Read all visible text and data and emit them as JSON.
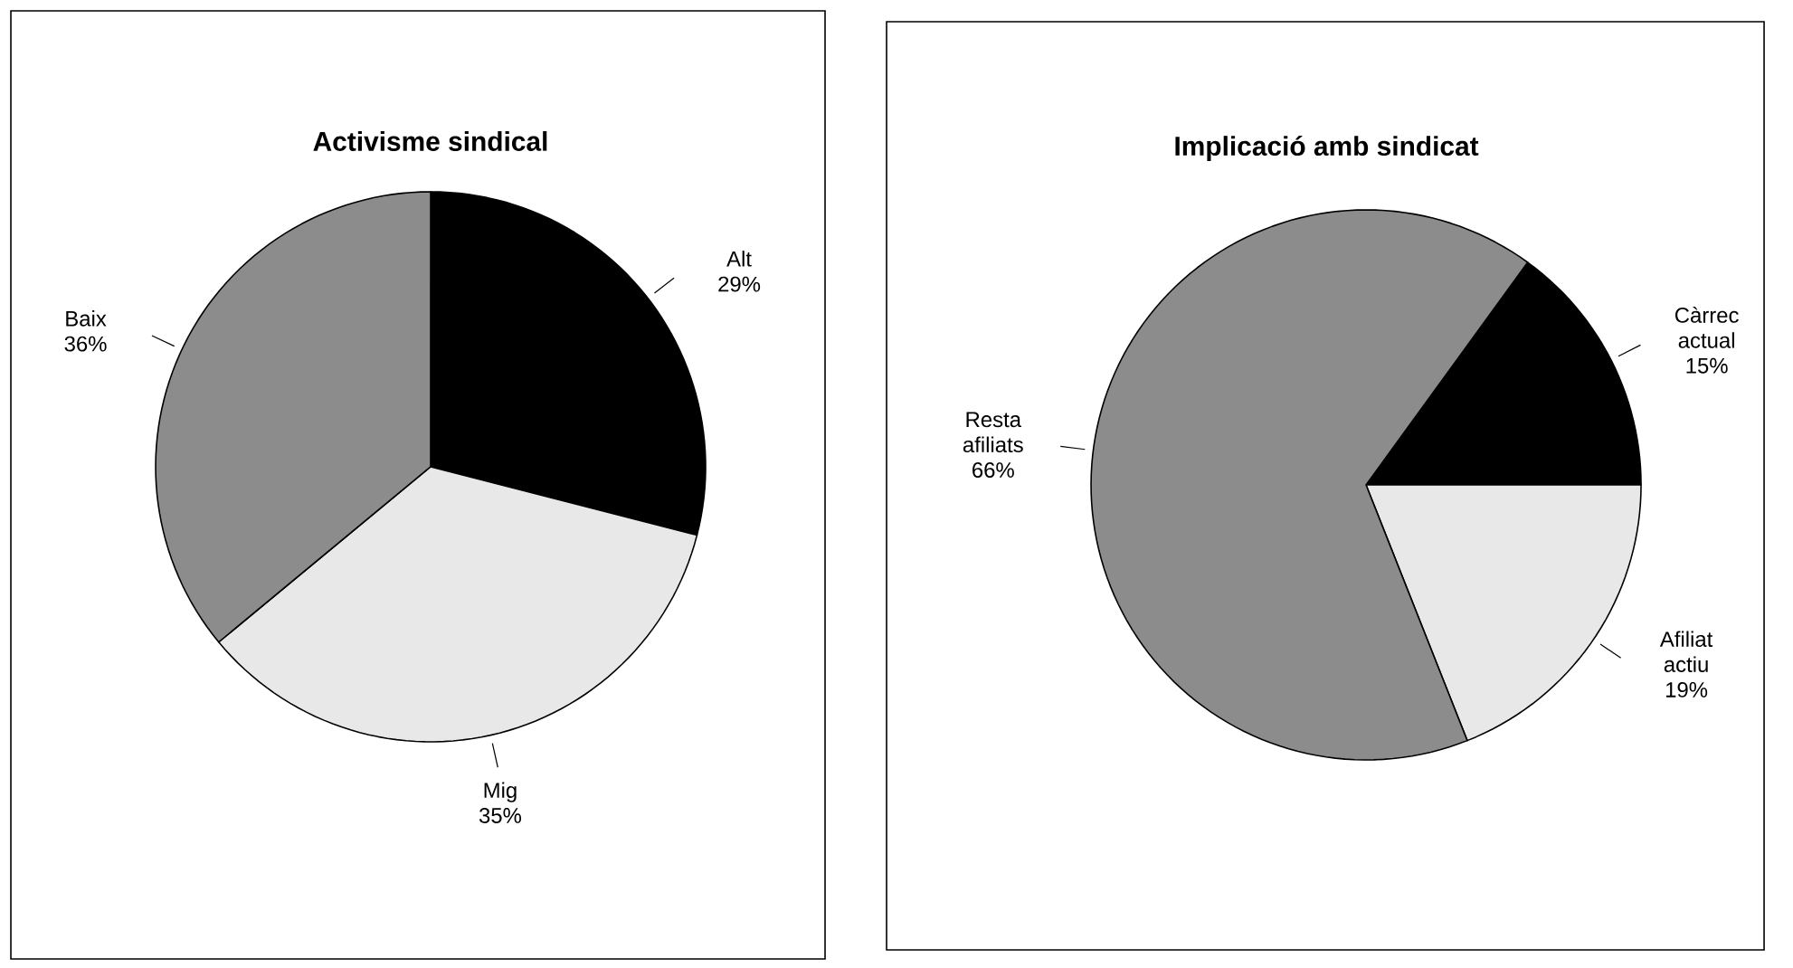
{
  "chart_data": [
    {
      "type": "pie",
      "title": "Activisme sindical",
      "categories": [
        "Alt",
        "Mig",
        "Baix"
      ],
      "values": [
        29,
        35,
        36
      ],
      "value_labels": [
        "29%",
        "35%",
        "36%"
      ],
      "colors": [
        "#000000",
        "#e8e8e8",
        "#8c8c8c"
      ]
    },
    {
      "type": "pie",
      "title": "Implicació amb sindicat",
      "categories": [
        "Càrrec actual",
        "Afiliat actiu",
        "Resta afiliats"
      ],
      "values": [
        15,
        19,
        66
      ],
      "value_labels": [
        "15%",
        "19%",
        "66%"
      ],
      "colors": [
        "#000000",
        "#e8e8e8",
        "#8c8c8c"
      ]
    }
  ]
}
